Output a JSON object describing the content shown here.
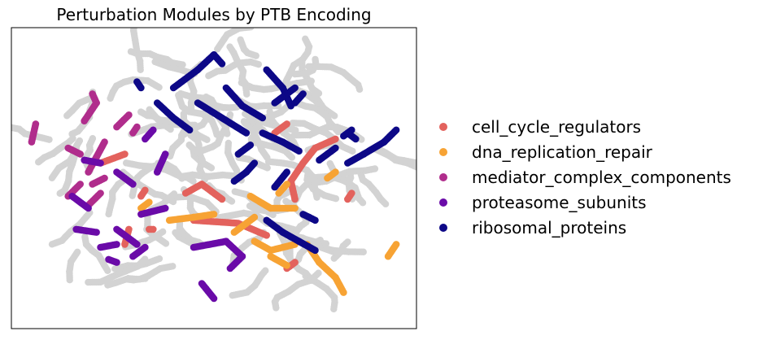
{
  "chart_data": {
    "type": "scatter",
    "title": "Perturbation Modules by PTB Encoding",
    "xlabel": "",
    "ylabel": "",
    "axes_ticks": false,
    "grid": false,
    "legend_position": "right",
    "background_color": "#d3d3d3",
    "series": [
      {
        "name": "cell_cycle_regulators",
        "color": "#e3625d",
        "strokes": [
          [
            [
              45,
              36
            ],
            [
              56,
              35
            ],
            [
              63,
              31
            ]
          ],
          [
            [
              43,
              45
            ],
            [
              47,
              48
            ],
            [
              52,
              43
            ]
          ],
          [
            [
              22,
              55
            ],
            [
              28,
              58
            ]
          ],
          [
            [
              32,
              44
            ],
            [
              33,
              46
            ]
          ],
          [
            [
              70,
              43
            ],
            [
              69,
              49
            ],
            [
              72,
              55
            ],
            [
              75,
              60
            ],
            [
              80,
              63
            ]
          ],
          [
            [
              65,
              65
            ],
            [
              68,
              68
            ]
          ],
          [
            [
              28,
              28
            ],
            [
              29,
              33
            ]
          ],
          [
            [
              34,
              33
            ],
            [
              35,
              33
            ]
          ],
          [
            [
              83,
              43
            ],
            [
              84,
              45
            ]
          ],
          [
            [
              68,
              20
            ],
            [
              70,
              22
            ]
          ]
        ]
      },
      {
        "name": "dna_replication_repair",
        "color": "#f7a334",
        "strokes": [
          [
            [
              39,
              36
            ],
            [
              45,
              37
            ],
            [
              50,
              38
            ]
          ],
          [
            [
              55,
              32
            ],
            [
              60,
              37
            ]
          ],
          [
            [
              59,
              44
            ],
            [
              64,
              40
            ],
            [
              70,
              40
            ]
          ],
          [
            [
              60,
              29
            ],
            [
              64,
              26
            ],
            [
              70,
              28
            ]
          ],
          [
            [
              73,
              28
            ],
            [
              76,
              22
            ],
            [
              80,
              17
            ],
            [
              82,
              12
            ]
          ],
          [
            [
              64,
              24
            ],
            [
              68,
              21
            ]
          ],
          [
            [
              78,
              50
            ],
            [
              80,
              52
            ]
          ],
          [
            [
              93,
              24
            ],
            [
              95,
              28
            ]
          ],
          [
            [
              32,
              40
            ],
            [
              34,
              42
            ]
          ],
          [
            [
              66,
              45
            ],
            [
              68,
              48
            ]
          ]
        ]
      },
      {
        "name": "mediator_complex_components",
        "color": "#b02d8c",
        "strokes": [
          [
            [
              18,
              69
            ],
            [
              21,
              75
            ],
            [
              20,
              78
            ]
          ],
          [
            [
              23,
              62
            ],
            [
              21,
              57
            ],
            [
              19,
              52
            ]
          ],
          [
            [
              26,
              67
            ],
            [
              29,
              71
            ]
          ],
          [
            [
              5,
              62
            ],
            [
              6,
              68
            ]
          ],
          [
            [
              14,
              44
            ],
            [
              17,
              48
            ]
          ],
          [
            [
              19,
              41
            ],
            [
              22,
              45
            ]
          ],
          [
            [
              20,
              48
            ],
            [
              23,
              50
            ]
          ],
          [
            [
              14,
              60
            ],
            [
              17,
              58
            ]
          ],
          [
            [
              30,
              65
            ],
            [
              31,
              67
            ]
          ]
        ]
      },
      {
        "name": "proteasome_subunits",
        "color": "#6a0ba8",
        "strokes": [
          [
            [
              45,
              27
            ],
            [
              53,
              29
            ],
            [
              57,
              24
            ],
            [
              54,
              20
            ]
          ],
          [
            [
              32,
              38
            ],
            [
              38,
              40
            ]
          ],
          [
            [
              26,
              33
            ],
            [
              29,
              30
            ],
            [
              31,
              28
            ]
          ],
          [
            [
              22,
              27
            ],
            [
              26,
              28
            ]
          ],
          [
            [
              24,
              23
            ],
            [
              26,
              22
            ]
          ],
          [
            [
              30,
              24
            ],
            [
              33,
              27
            ]
          ],
          [
            [
              16,
              33
            ],
            [
              21,
              32
            ]
          ],
          [
            [
              15,
              44
            ],
            [
              19,
              40
            ]
          ],
          [
            [
              36,
              52
            ],
            [
              38,
              58
            ]
          ],
          [
            [
              18,
              56
            ],
            [
              22,
              55
            ]
          ],
          [
            [
              33,
              63
            ],
            [
              35,
              66
            ]
          ],
          [
            [
              47,
              15
            ],
            [
              50,
              10
            ]
          ],
          [
            [
              26,
              52
            ],
            [
              30,
              48
            ]
          ]
        ]
      },
      {
        "name": "ribosomal_proteins",
        "color": "#0d0887",
        "strokes": [
          [
            [
              40,
              80
            ],
            [
              46,
              86
            ],
            [
              50,
              91
            ],
            [
              52,
              88
            ]
          ],
          [
            [
              46,
              75
            ],
            [
              52,
              70
            ],
            [
              58,
              65
            ]
          ],
          [
            [
              53,
              80
            ],
            [
              57,
              74
            ],
            [
              62,
              70
            ]
          ],
          [
            [
              63,
              86
            ],
            [
              67,
              80
            ],
            [
              69,
              74
            ]
          ],
          [
            [
              62,
              65
            ],
            [
              67,
              62
            ],
            [
              71,
              59
            ]
          ],
          [
            [
              56,
              58
            ],
            [
              59,
              61
            ]
          ],
          [
            [
              65,
              75
            ],
            [
              70,
              80
            ]
          ],
          [
            [
              36,
              75
            ],
            [
              40,
              70
            ],
            [
              44,
              66
            ]
          ],
          [
            [
              76,
              56
            ],
            [
              80,
              60
            ]
          ],
          [
            [
              82,
              64
            ],
            [
              84,
              66
            ]
          ],
          [
            [
              83,
              55
            ],
            [
              87,
              58
            ],
            [
              92,
              62
            ],
            [
              95,
              66
            ]
          ],
          [
            [
              83,
              65
            ],
            [
              85,
              63
            ]
          ],
          [
            [
              55,
              49
            ],
            [
              58,
              52
            ],
            [
              60,
              55
            ]
          ],
          [
            [
              63,
              36
            ],
            [
              67,
              32
            ],
            [
              71,
              29
            ],
            [
              75,
              26
            ]
          ],
          [
            [
              72,
              38
            ],
            [
              75,
              36
            ]
          ],
          [
            [
              31,
              82
            ],
            [
              32,
              80
            ]
          ],
          [
            [
              70,
              75
            ],
            [
              72,
              78
            ]
          ],
          [
            [
              65,
              47
            ],
            [
              68,
              52
            ]
          ]
        ]
      }
    ]
  }
}
